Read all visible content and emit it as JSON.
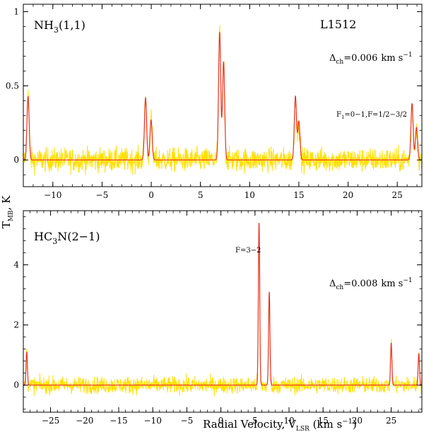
{
  "chart_data": [
    {
      "type": "line",
      "line_label": "NH",
      "line_sub": "3",
      "line_transition": "(1,1)",
      "source": "L1512",
      "channel_pre": "Δ",
      "channel_sub": "ch",
      "channel_value": "=0.006",
      "channel_unit": "km s",
      "channel_unit_exp": "−1",
      "annotation_pre": "F",
      "annotation_sub": "1",
      "annotation_post": "=0−1,F=1/2−3/2",
      "annotation_at": 26.6,
      "xlim": [
        -13.0,
        27.5
      ],
      "ylim": [
        -0.18,
        1.05
      ],
      "xticks": [
        -10,
        -5,
        0,
        5,
        10,
        15,
        20,
        25
      ],
      "xtick_labels": [
        "−10",
        "−5",
        "0",
        "5",
        "10",
        "15",
        "20",
        "25"
      ],
      "yticks": [
        0,
        0.5,
        1
      ],
      "ytick_labels": [
        "0",
        "0.5",
        "1"
      ],
      "noise_rms": 0.055,
      "line_width_kms": 0.11,
      "lines": [
        {
          "v": -12.52,
          "t": 0.43
        },
        {
          "v": -0.58,
          "t": 0.42
        },
        {
          "v": -0.02,
          "t": 0.27
        },
        {
          "v": 6.95,
          "t": 0.86
        },
        {
          "v": 7.35,
          "t": 0.66
        },
        {
          "v": 14.65,
          "t": 0.43
        },
        {
          "v": 15.0,
          "t": 0.26
        },
        {
          "v": 26.5,
          "t": 0.38
        },
        {
          "v": 26.95,
          "t": 0.22
        }
      ],
      "series": [
        {
          "name": "observed",
          "color": "#FFE000"
        },
        {
          "name": "fit",
          "color": "#E8332A"
        }
      ]
    },
    {
      "type": "line",
      "line_label": "HC",
      "line_sub": "3",
      "line_transition": "N(2−1)",
      "channel_pre": "Δ",
      "channel_sub": "ch",
      "channel_value": "=0.008",
      "channel_unit": "km s",
      "channel_unit_exp": "−1",
      "annotation_pre": "F=3−2",
      "annotation_sub": "",
      "annotation_post": "",
      "annotation_at": 5.6,
      "xlim": [
        -29.0,
        29.5
      ],
      "ylim": [
        -0.9,
        5.8
      ],
      "xticks": [
        -25,
        -20,
        -15,
        -10,
        -5,
        0,
        5,
        10,
        15,
        20,
        25
      ],
      "xtick_labels": [
        "−25",
        "−20",
        "−15",
        "−10",
        "−5",
        "0",
        "5",
        "10",
        "15",
        "20",
        "25"
      ],
      "yticks": [
        0,
        2,
        4
      ],
      "ytick_labels": [
        "0",
        "2",
        "4"
      ],
      "noise_rms": 0.19,
      "line_width_kms": 0.1,
      "lines": [
        {
          "v": -28.5,
          "t": 1.1
        },
        {
          "v": 5.6,
          "t": 5.4
        },
        {
          "v": 7.1,
          "t": 3.1
        },
        {
          "v": 25.0,
          "t": 1.4
        },
        {
          "v": 29.05,
          "t": 1.05
        }
      ],
      "series": [
        {
          "name": "observed",
          "color": "#FFE000"
        },
        {
          "name": "fit",
          "color": "#E8332A"
        }
      ]
    }
  ],
  "axes": {
    "y_label_main": "T",
    "y_label_sub": "MB",
    "y_label_unit": ", K",
    "x_label_main": "Radial Velocity, V",
    "x_label_sub": "LSR",
    "x_label_unit": " (km s",
    "x_label_exp": "−1",
    "x_label_close": ")"
  }
}
